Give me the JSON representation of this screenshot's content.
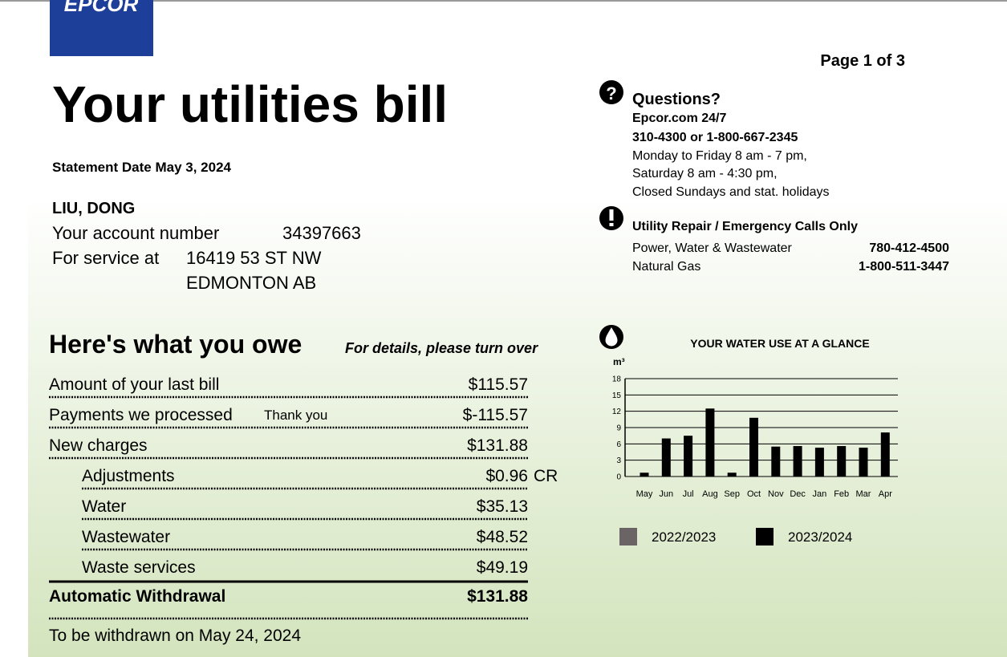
{
  "logo": "EPCOR",
  "page_indicator": "Page 1 of 3",
  "title": "Your utilities bill",
  "statement_date": "Statement Date May 3, 2024",
  "customer": {
    "name": "LIU, DONG",
    "account_label": "Your account number",
    "account_number": "34397663",
    "service_label": "For service at",
    "address_line1": "16419 53 ST NW",
    "address_line2": "EDMONTON AB"
  },
  "contact": {
    "heading": "Questions?",
    "website": "Epcor.com 24/7",
    "phones": "310-4300 or 1-800-667-2345",
    "hours": [
      "Monday to Friday 8 am - 7 pm,",
      "Saturday 8 am - 4:30 pm,",
      "Closed Sundays and stat. holidays"
    ],
    "emergency_heading": "Utility Repair / Emergency Calls Only",
    "emergency": [
      {
        "label": "Power, Water & Wastewater",
        "number": "780-412-4500"
      },
      {
        "label": "Natural Gas",
        "number": "1-800-511-3447"
      }
    ]
  },
  "owe": {
    "heading": "Here's what you owe",
    "note": "For details, please turn over",
    "rows": [
      {
        "label": "Amount of your last bill",
        "amount": "$115.57"
      },
      {
        "label": "Payments we processed",
        "note": "Thank you",
        "amount": "$-115.57"
      },
      {
        "label": "New charges",
        "amount": "$131.88"
      },
      {
        "label": "Adjustments",
        "amount": "$0.96",
        "suffix": "CR"
      },
      {
        "label": "Water",
        "amount": "$35.13"
      },
      {
        "label": "Wastewater",
        "amount": "$48.52"
      },
      {
        "label": "Waste services",
        "amount": "$49.19"
      }
    ],
    "total": {
      "label": "Automatic Withdrawal",
      "amount": "$131.88"
    },
    "footer": "To be withdrawn on May 24, 2024"
  },
  "chart_data": {
    "type": "bar",
    "title": "YOUR WATER USE AT A GLANCE",
    "y_label": "m³",
    "categories": [
      "May",
      "Jun",
      "Jul",
      "Aug",
      "Sep",
      "Oct",
      "Nov",
      "Dec",
      "Jan",
      "Feb",
      "Mar",
      "Apr"
    ],
    "series": [
      {
        "name": "2022/2023",
        "color": "#6b6464",
        "values": [
          null,
          null,
          null,
          null,
          null,
          null,
          null,
          null,
          null,
          null,
          null,
          null
        ]
      },
      {
        "name": "2023/2024",
        "color": "#000000",
        "values": [
          0.7,
          7,
          7.5,
          12.5,
          0.7,
          10.8,
          5.5,
          5.6,
          5.3,
          5.6,
          5.3,
          8.1
        ]
      }
    ],
    "ylim": [
      0,
      18
    ],
    "yticks": [
      0,
      3,
      6,
      9,
      12,
      15,
      18
    ],
    "grid": true
  }
}
